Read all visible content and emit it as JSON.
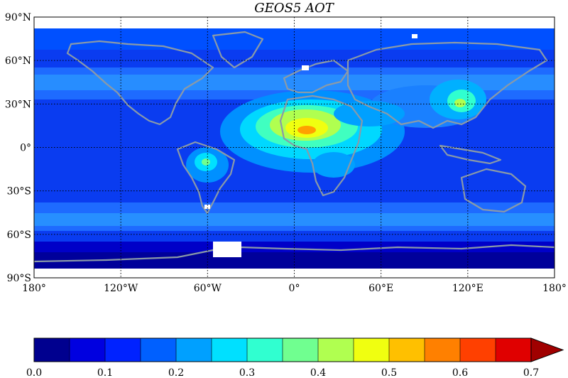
{
  "map": {
    "title": "GEOS5 AOT",
    "lat_labels": [
      "90°N",
      "60°N",
      "30°N",
      "0°",
      "30°S",
      "60°S",
      "90°S"
    ],
    "lon_labels": [
      "180°",
      "120°W",
      "60°W",
      "0°",
      "60°E",
      "120°E",
      "180°"
    ],
    "lat_ticks": [
      90,
      60,
      30,
      0,
      -30,
      -60,
      -90
    ],
    "lon_ticks": [
      -180,
      -120,
      -60,
      0,
      60,
      120,
      180
    ],
    "lat_range": [
      -90,
      90
    ],
    "lon_range": [
      -180,
      180
    ],
    "grid": "dotted",
    "coastline_color": "#8a9aa8",
    "fill_color": "#0a3cf0"
  },
  "colorbar": {
    "labels": [
      "0.0",
      "0.1",
      "0.2",
      "0.3",
      "0.4",
      "0.5",
      "0.6",
      "0.7"
    ],
    "range": [
      0,
      0.7
    ],
    "levels": [
      0,
      0.05,
      0.1,
      0.15,
      0.2,
      0.25,
      0.3,
      0.35,
      0.4,
      0.45,
      0.5,
      0.55,
      0.6,
      0.65,
      0.7
    ],
    "colors": [
      "#00008f",
      "#0000e0",
      "#0022ff",
      "#0060ff",
      "#00a0ff",
      "#00e0ff",
      "#30ffd0",
      "#70ff90",
      "#b0ff50",
      "#f0ff10",
      "#ffc000",
      "#ff8000",
      "#ff4000",
      "#e00000",
      "#a00000"
    ],
    "extend": "max"
  }
}
